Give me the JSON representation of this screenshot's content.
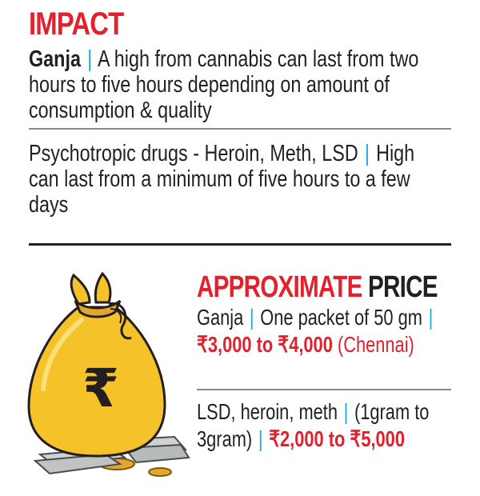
{
  "impact": {
    "title": "IMPACT",
    "ganja_label": "Ganja",
    "separator": "|",
    "ganja_text": "A high from cannabis can last from two hours to five hours depending on amount of consumption & quality",
    "psychotropic_label": "Psychotropic drugs - Heroin, Meth, LSD",
    "psychotropic_text": "High can last from a minimum of five hours to a few days"
  },
  "price": {
    "title_red": "APPROXIMATE",
    "title_dark": "PRICE",
    "ganja_label": "Ganja",
    "ganja_desc": "One packet of 50 gm",
    "ganja_price": "₹3,000 to ₹4,000",
    "ganja_city": "(Chennai)",
    "lsd_label": "LSD, heroin, meth",
    "lsd_desc": "(1gram to 3gram)",
    "lsd_price": "₹2,000 to ₹5,000"
  },
  "illustration": {
    "icon": "money-bag-icon",
    "symbol": "₹"
  },
  "colors": {
    "accent_red": "#e3202b",
    "separator_blue": "#19a7e0",
    "bag_yellow": "#f6c22a",
    "text": "#231f20"
  }
}
